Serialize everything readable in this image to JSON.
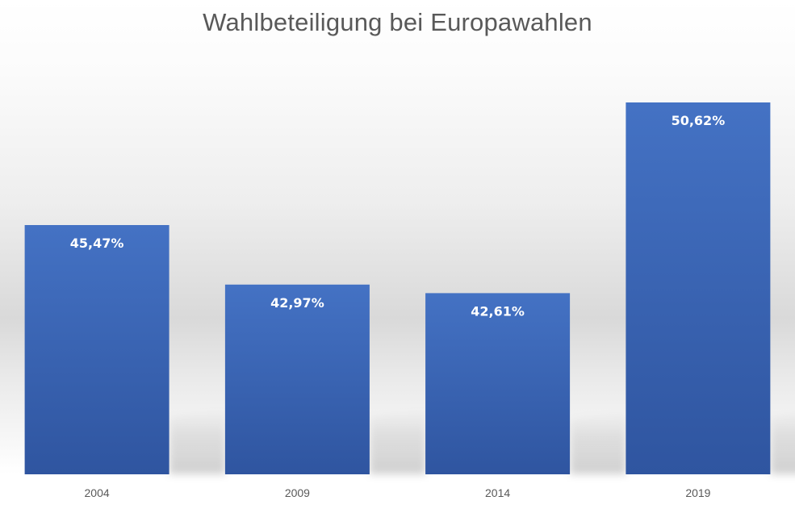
{
  "chart_data": {
    "type": "bar",
    "title": "Wahlbeteiligung bei Europawahlen",
    "categories": [
      "2004",
      "2009",
      "2014",
      "2019"
    ],
    "values": [
      45.47,
      42.97,
      42.61,
      50.62
    ],
    "value_labels": [
      "45,47%",
      "42,97%",
      "42,61%",
      "50,62%"
    ],
    "xlabel": "",
    "ylabel": "",
    "ylim": [
      35,
      52
    ],
    "grid": false,
    "legend": "none",
    "colors": {
      "bar_top": "#4472c4",
      "bar_bottom": "#2f55a0",
      "bar_label": "#ffffff",
      "tick_label": "#595959",
      "title": "#595959"
    }
  }
}
